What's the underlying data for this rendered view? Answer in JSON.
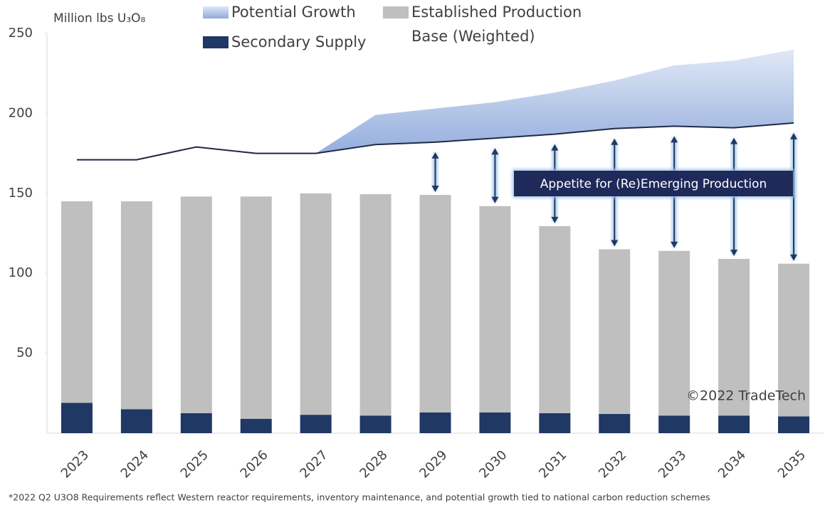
{
  "chart_data": {
    "type": "stacked-bar-line",
    "ylabel": "Million lbs U₃O₈",
    "categories": [
      "2023",
      "2024",
      "2025",
      "2026",
      "2027",
      "2028",
      "2029",
      "2030",
      "2031",
      "2032",
      "2033",
      "2034",
      "2035"
    ],
    "series": [
      {
        "name": "Secondary Supply",
        "color": "#1f3864",
        "values": [
          19,
          15,
          12.5,
          9,
          11.5,
          11,
          13,
          13,
          12.5,
          12,
          11,
          11,
          10.5
        ]
      },
      {
        "name": "Established Production Base (Weighted)",
        "color": "#bfbfbf",
        "values": [
          126,
          130,
          135.5,
          139,
          138.5,
          138.5,
          136,
          129,
          117,
          103,
          103,
          98,
          95.5
        ]
      },
      {
        "name": "Potential Growth",
        "color": "#8faadc",
        "values": [
          null,
          null,
          null,
          null,
          0,
          18.5,
          21,
          22.5,
          26,
          30,
          38,
          42,
          46
        ]
      }
    ],
    "line": {
      "color": "#1f2a44",
      "values": [
        171,
        171,
        179,
        175,
        175,
        180.5,
        182,
        184.5,
        187,
        190.5,
        192,
        191,
        194
      ]
    },
    "ylim": [
      0,
      250
    ],
    "yticks": [
      50,
      100,
      150,
      200,
      250
    ],
    "annotation": "Appetite for (Re)Emerging Production",
    "watermark": "©2022 TradeTech",
    "footnote": "*2022 Q2 U3O8 Requirements reflect Western reactor requirements, inventory maintenance, and potential growth tied to national carbon reduction schemes"
  }
}
